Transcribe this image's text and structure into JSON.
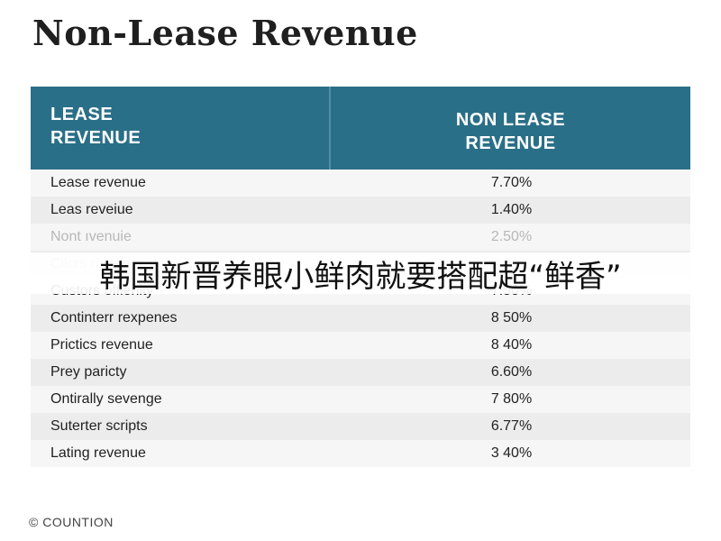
{
  "title": "Non-Lease Revenue",
  "header": {
    "left": "LEASE\nREVENUE",
    "right": "NON LEASE\nREVENUE"
  },
  "overlay_caption": "韩国新晋养眼小鲜肉就要搭配超“鲜香”",
  "footer": "© COUNTION",
  "chart_data": {
    "type": "table",
    "columns": [
      "LEASE REVENUE",
      "NON LEASE REVENUE"
    ],
    "rows": [
      {
        "label": "Lease revenue",
        "value": "7.70%"
      },
      {
        "label": "Leas reveiue",
        "value": "1.40%"
      },
      {
        "label": "Nont ıvenuie",
        "value": "2.50%"
      },
      {
        "label": "Cilcrs revenue",
        "value": "8.70%"
      },
      {
        "label": "Custors offienity",
        "value": "7.50%"
      },
      {
        "label": "Continterr rexpenes",
        "value": "8 50%"
      },
      {
        "label": "Prictics revenue",
        "value": "8 40%"
      },
      {
        "label": "Prey paricty",
        "value": "6.60%"
      },
      {
        "label": "Ontirally sevenge",
        "value": "7 80%"
      },
      {
        "label": "Suterter scripts",
        "value": "6.77%"
      },
      {
        "label": "Lating revenue",
        "value": "3 40%"
      }
    ]
  }
}
